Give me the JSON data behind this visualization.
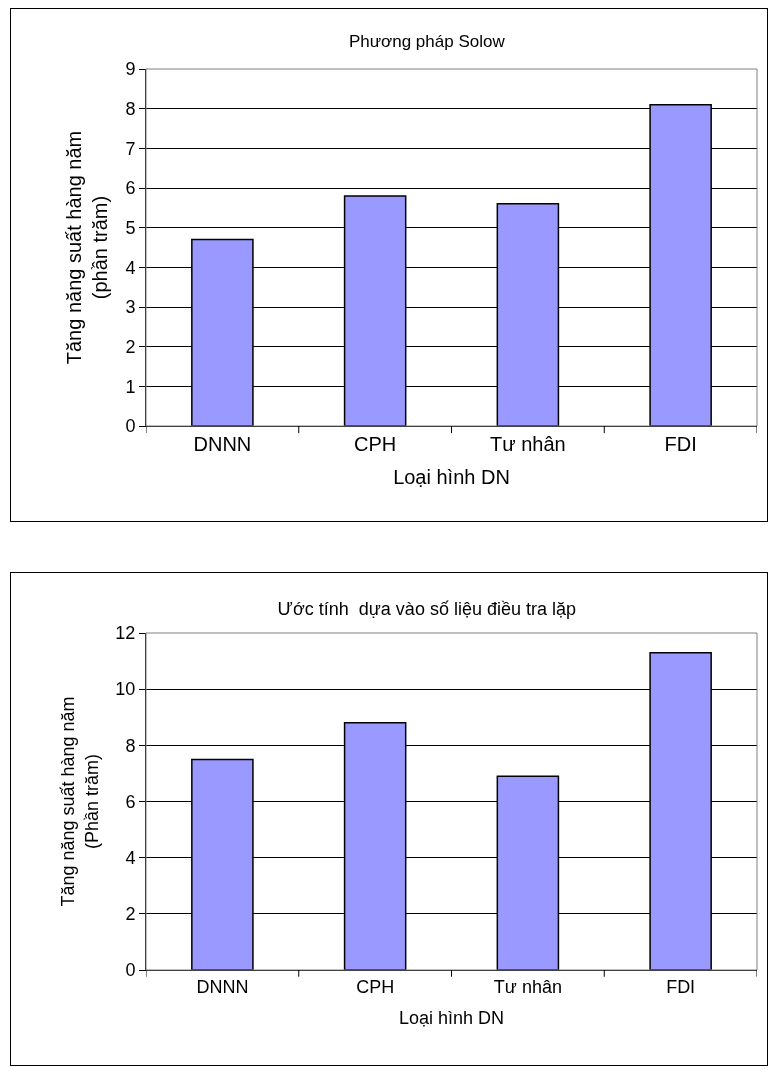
{
  "chart_data": [
    {
      "type": "bar",
      "title": "Phương pháp Solow",
      "xlabel": "Loại hình DN",
      "ylabel": "Tăng năng suất hàng năm\n(phần trăm)",
      "categories": [
        "DNNN",
        "CPH",
        "Tư nhân",
        "FDI"
      ],
      "values": [
        4.7,
        5.8,
        5.6,
        8.1
      ],
      "color": "#9999ff",
      "ylim": [
        0,
        9
      ],
      "yticks": [
        0,
        1,
        2,
        3,
        4,
        5,
        6,
        7,
        8,
        9
      ],
      "grid": "y"
    },
    {
      "type": "bar",
      "title": "Ước tính  dựa vào số liệu điều tra lặp",
      "xlabel": "Loại hình DN",
      "ylabel": "Tăng năng suất hàng năm\n(Phần trăm)",
      "categories": [
        "DNNN",
        "CPH",
        "Tư nhân",
        "FDI"
      ],
      "values": [
        7.5,
        8.8,
        6.9,
        11.3
      ],
      "color": "#9999ff",
      "ylim": [
        0,
        12
      ],
      "yticks": [
        0,
        2,
        4,
        6,
        8,
        10,
        12
      ],
      "grid": "y"
    }
  ]
}
